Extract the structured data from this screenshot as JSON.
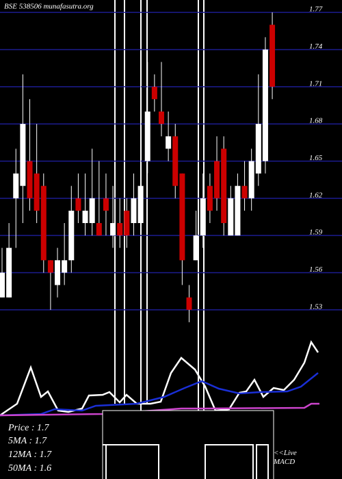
{
  "chart_data": [
    {
      "type": "candlestick",
      "title": "BSE 538506 munafasutra.org",
      "up_color": "#ffffff",
      "down_color": "#cc0000",
      "grid_color": "#1c1c8f",
      "grid": true,
      "ylim": [
        1.51,
        1.78
      ],
      "yticks": [
        1.53,
        1.56,
        1.59,
        1.62,
        1.65,
        1.68,
        1.71,
        1.74,
        1.77
      ],
      "open": [
        1.54,
        1.54,
        1.62,
        1.63,
        1.65,
        1.64,
        1.63,
        1.57,
        1.55,
        1.56,
        1.57,
        1.62,
        1.6,
        1.6,
        1.6,
        1.62,
        1.59,
        1.6,
        1.61,
        1.6,
        1.6,
        1.65,
        1.71,
        1.69,
        1.66,
        1.67,
        1.64,
        1.54,
        1.57,
        1.59,
        1.63,
        1.65,
        1.66,
        1.59,
        1.59,
        1.63,
        1.62,
        1.64,
        1.65,
        1.76
      ],
      "high": [
        1.58,
        1.6,
        1.66,
        1.72,
        1.7,
        1.68,
        1.64,
        1.57,
        1.58,
        1.6,
        1.63,
        1.64,
        1.64,
        1.66,
        1.65,
        1.64,
        1.63,
        1.62,
        1.62,
        1.64,
        1.72,
        1.73,
        1.72,
        1.73,
        1.69,
        1.68,
        1.64,
        1.55,
        1.61,
        1.64,
        1.64,
        1.67,
        1.67,
        1.63,
        1.64,
        1.65,
        1.66,
        1.72,
        1.75,
        1.77
      ],
      "low": [
        1.54,
        1.54,
        1.58,
        1.6,
        1.61,
        1.6,
        1.56,
        1.53,
        1.54,
        1.55,
        1.56,
        1.6,
        1.59,
        1.59,
        1.59,
        1.59,
        1.58,
        1.58,
        1.58,
        1.59,
        1.6,
        1.64,
        1.69,
        1.67,
        1.65,
        1.62,
        1.55,
        1.52,
        1.57,
        1.58,
        1.6,
        1.61,
        1.59,
        1.59,
        1.59,
        1.61,
        1.61,
        1.63,
        1.64,
        1.7
      ],
      "close": [
        1.56,
        1.58,
        1.64,
        1.68,
        1.62,
        1.61,
        1.57,
        1.56,
        1.57,
        1.57,
        1.61,
        1.61,
        1.61,
        1.62,
        1.59,
        1.61,
        1.6,
        1.59,
        1.59,
        1.62,
        1.63,
        1.69,
        1.7,
        1.68,
        1.67,
        1.63,
        1.57,
        1.53,
        1.59,
        1.62,
        1.61,
        1.62,
        1.6,
        1.62,
        1.63,
        1.62,
        1.65,
        1.68,
        1.74,
        1.71
      ],
      "legend": [
        "Price : 1.7",
        "5MA : 1.7",
        "12MA : 1.7",
        "50MA : 1.6"
      ],
      "note": "<<Live MACD"
    },
    {
      "type": "line",
      "xlim": [
        0,
        50
      ],
      "ylim": [
        0,
        100
      ],
      "series": [
        {
          "color": "#ffffff",
          "x": [
            0,
            2.5,
            4.5,
            6,
            7,
            8.5,
            10,
            12,
            13,
            15,
            16,
            17.5,
            18.5,
            20,
            22,
            23.5,
            25,
            26.5,
            28.5,
            30,
            31.5,
            33.5,
            35,
            36,
            37.2,
            38.5,
            40,
            41.5,
            43,
            44.5,
            45.5,
            46.5
          ],
          "values": [
            2.5,
            16.7,
            60.8,
            25,
            31.7,
            8.3,
            6.7,
            10.8,
            26.7,
            27.5,
            30.8,
            18.3,
            27.5,
            16.7,
            16.7,
            19.2,
            54.2,
            72.5,
            58.3,
            37.5,
            8.3,
            10,
            30,
            31.7,
            45.8,
            25,
            35.8,
            33.3,
            45.8,
            66.7,
            91.7,
            79.2
          ]
        },
        {
          "color": "#1a2fd6",
          "x": [
            0,
            6,
            8,
            12,
            14,
            20,
            24,
            27,
            29.5,
            32,
            35,
            38,
            42,
            44,
            46.5
          ],
          "values": [
            2.5,
            4.2,
            10,
            8.3,
            14.2,
            16.7,
            25,
            35.8,
            44.2,
            35,
            29.2,
            30.8,
            31.7,
            37.5,
            54.2
          ]
        },
        {
          "color": "#cc44cc",
          "x": [
            0,
            15,
            26.5,
            30,
            44.5,
            45.5,
            46.7
          ],
          "values": [
            2.5,
            4.2,
            10.8,
            10.8,
            11.7,
            16.7,
            16.7
          ]
        }
      ]
    }
  ]
}
